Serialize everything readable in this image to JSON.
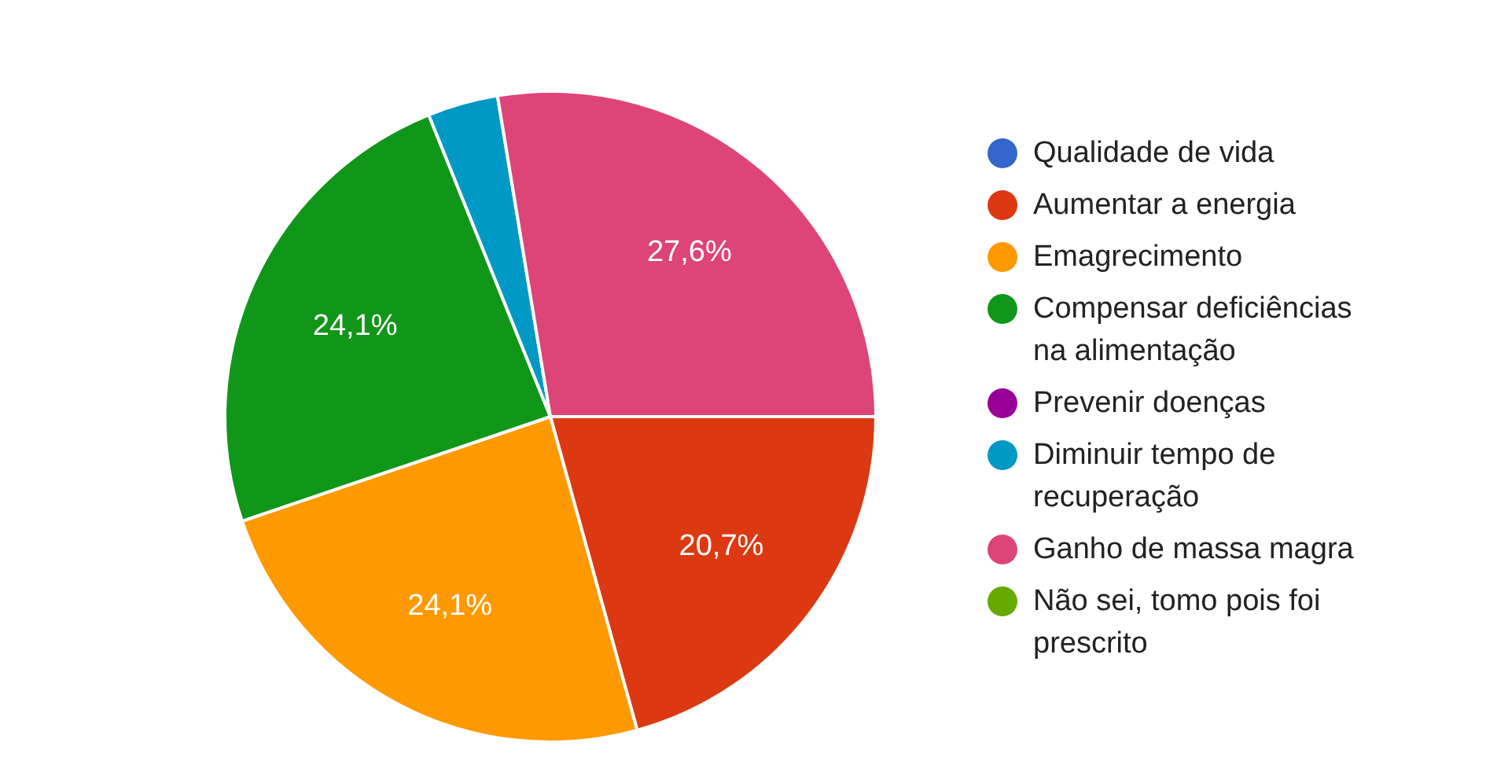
{
  "chart_data": {
    "type": "pie",
    "categories": [
      "Qualidade de vida",
      "Aumentar a energia",
      "Emagrecimento",
      "Compensar deficiências na alimentação",
      "Prevenir doenças",
      "Diminuir tempo de recuperação",
      "Ganho de massa magra",
      "Não sei, tomo pois foi prescrito"
    ],
    "values": [
      0,
      20.7,
      24.1,
      24.1,
      0,
      3.5,
      27.6,
      0
    ],
    "colors": [
      "#3366cc",
      "#dc3912",
      "#ff9900",
      "#109618",
      "#990099",
      "#0099c6",
      "#dd4477",
      "#66aa00"
    ],
    "value_labels": [
      null,
      "20,7%",
      "24,1%",
      "24,1%",
      null,
      null,
      "27,6%",
      null
    ],
    "legend": "right"
  }
}
